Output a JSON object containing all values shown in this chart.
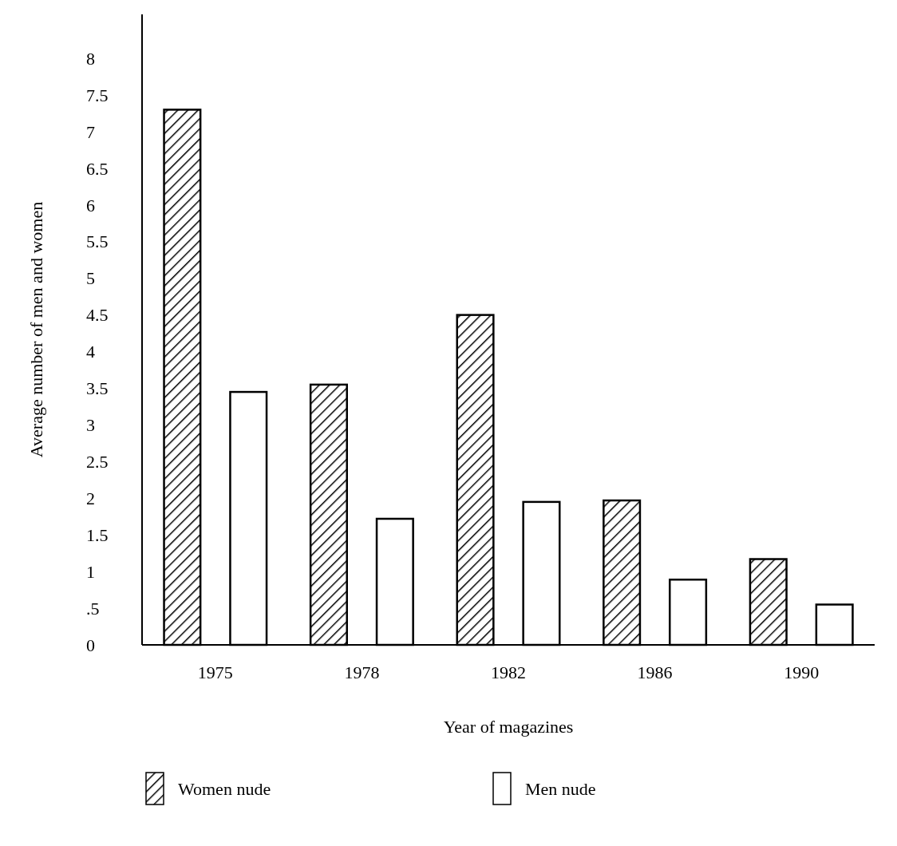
{
  "chart_data": {
    "type": "bar",
    "xlabel": "Year of magazines",
    "ylabel": "Average number of men and women",
    "categories": [
      "1975",
      "1978",
      "1982",
      "1986",
      "1990"
    ],
    "series": [
      {
        "name": "Women nude",
        "color": "#000000",
        "values": [
          7.3,
          3.55,
          4.5,
          1.97,
          1.17
        ]
      },
      {
        "name": "Men nude",
        "color": "#ffffff",
        "values": [
          3.45,
          1.72,
          1.95,
          0.89,
          0.55
        ]
      }
    ],
    "ylim": [
      0,
      8.6
    ],
    "yticks": [
      0,
      {
        "value": 0.5,
        "label": ".5"
      },
      1,
      1.5,
      2,
      2.5,
      3,
      3.5,
      4,
      4.5,
      5,
      5.5,
      6,
      6.5,
      7,
      7.5,
      8
    ],
    "grid": false,
    "legend": "bottom"
  }
}
